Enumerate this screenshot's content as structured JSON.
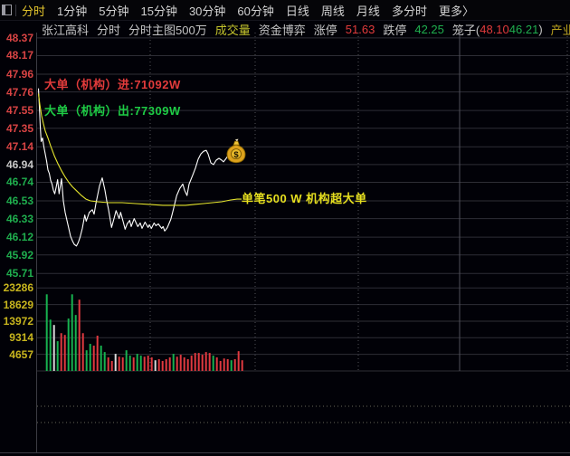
{
  "toolbar": {
    "items": [
      {
        "label": "分时",
        "active": true
      },
      {
        "label": "1分钟",
        "active": false
      },
      {
        "label": "5分钟",
        "active": false
      },
      {
        "label": "15分钟",
        "active": false
      },
      {
        "label": "30分钟",
        "active": false
      },
      {
        "label": "60分钟",
        "active": false
      },
      {
        "label": "日线",
        "active": false
      },
      {
        "label": "周线",
        "active": false
      },
      {
        "label": "月线",
        "active": false
      },
      {
        "label": "多分时",
        "active": false
      },
      {
        "label": "更多〉",
        "active": false
      }
    ]
  },
  "info_bar": {
    "stock_name": "张江高科",
    "view_label": "分时",
    "main_chart_label": "分时主图500万",
    "volume_label": "成交量",
    "fund_label": "资金博弈",
    "limit_up_label": "涨停",
    "limit_up_value": "51.63",
    "limit_down_label": "跌停",
    "limit_down_value": "42.25",
    "cage_label": "笼子(",
    "cage_high": "48.10",
    "cage_low": "46.21",
    "cage_close": ")",
    "sector": "产业地产"
  },
  "overlays": {
    "big_buy": "大单（机构）进:71092W",
    "big_sell": "大单（机构）出:77309W",
    "note": "单笔500 W 机构超大单"
  },
  "chart_data": {
    "type": "line",
    "title": "张江高科 分时",
    "prev_close": 46.94,
    "price_axis": {
      "ylim": [
        45.71,
        48.43
      ],
      "labels": [
        {
          "text": "48.37",
          "tone": "up"
        },
        {
          "text": "48.17",
          "tone": "up"
        },
        {
          "text": "47.96",
          "tone": "up"
        },
        {
          "text": "47.76",
          "tone": "up"
        },
        {
          "text": "47.55",
          "tone": "up"
        },
        {
          "text": "47.35",
          "tone": "up"
        },
        {
          "text": "47.14",
          "tone": "up"
        },
        {
          "text": "46.94",
          "tone": "flat"
        },
        {
          "text": "46.74",
          "tone": "down"
        },
        {
          "text": "46.53",
          "tone": "down"
        },
        {
          "text": "46.33",
          "tone": "down"
        },
        {
          "text": "46.12",
          "tone": "down"
        },
        {
          "text": "45.92",
          "tone": "down"
        },
        {
          "text": "45.71",
          "tone": "down"
        }
      ]
    },
    "volume_axis": {
      "vlim": [
        0,
        27335
      ],
      "labels": [
        "23286",
        "18629",
        "13972",
        "9314",
        "4657"
      ]
    },
    "colors": {
      "price_line": "#ffffff",
      "avg_line": "#e6e62e",
      "bar_up": "#e0393f",
      "bar_down": "#17b24f",
      "bar_flat": "#d9d9d9"
    },
    "series": [
      {
        "name": "price",
        "points": [
          [
            42.5,
            47.8
          ],
          [
            43.5,
            47.6
          ],
          [
            44.5,
            47.37
          ],
          [
            45.5,
            47.2
          ],
          [
            47,
            47.24
          ],
          [
            48.5,
            47.14
          ],
          [
            50,
            47.06
          ],
          [
            51.5,
            46.98
          ],
          [
            53,
            46.88
          ],
          [
            54.5,
            46.84
          ],
          [
            56,
            46.76
          ],
          [
            57.5,
            46.72
          ],
          [
            59,
            46.65
          ],
          [
            60.5,
            46.61
          ],
          [
            62,
            46.68
          ],
          [
            63.7,
            46.77
          ],
          [
            65.3,
            46.61
          ],
          [
            68,
            46.78
          ],
          [
            70,
            46.53
          ],
          [
            72,
            46.4
          ],
          [
            74,
            46.31
          ],
          [
            76,
            46.22
          ],
          [
            78,
            46.13
          ],
          [
            80,
            46.08
          ],
          [
            82,
            46.04
          ],
          [
            84.5,
            46.02
          ],
          [
            86.5,
            46.06
          ],
          [
            88.5,
            46.12
          ],
          [
            91,
            46.22
          ],
          [
            93.7,
            46.37
          ],
          [
            95.3,
            46.3
          ],
          [
            98.7,
            46.4
          ],
          [
            102,
            46.43
          ],
          [
            104,
            46.38
          ],
          [
            106,
            46.5
          ],
          [
            108,
            46.6
          ],
          [
            110,
            46.7
          ],
          [
            113,
            46.79
          ],
          [
            116,
            46.65
          ],
          [
            118,
            46.53
          ],
          [
            120,
            46.43
          ],
          [
            123.3,
            46.23
          ],
          [
            126,
            46.33
          ],
          [
            128.3,
            46.42
          ],
          [
            131.7,
            46.33
          ],
          [
            133.3,
            46.4
          ],
          [
            136,
            46.3
          ],
          [
            138.3,
            46.21
          ],
          [
            140.5,
            46.27
          ],
          [
            143.3,
            46.31
          ],
          [
            145,
            46.24
          ],
          [
            148.3,
            46.33
          ],
          [
            152.3,
            46.24
          ],
          [
            155,
            46.28
          ],
          [
            157,
            46.22
          ],
          [
            160.3,
            46.29
          ],
          [
            163.7,
            46.23
          ],
          [
            165,
            46.26
          ],
          [
            167.3,
            46.22
          ],
          [
            170.3,
            46.28
          ],
          [
            172.3,
            46.25
          ],
          [
            175,
            46.27
          ],
          [
            178.7,
            46.22
          ],
          [
            180.3,
            46.24
          ],
          [
            182,
            46.19
          ],
          [
            183.7,
            46.21
          ],
          [
            185,
            46.23
          ],
          [
            188.7,
            46.32
          ],
          [
            190.3,
            46.38
          ],
          [
            192,
            46.45
          ],
          [
            195.3,
            46.59
          ],
          [
            198.7,
            46.67
          ],
          [
            202,
            46.72
          ],
          [
            204,
            46.65
          ],
          [
            206.7,
            46.59
          ],
          [
            209,
            46.72
          ],
          [
            211,
            46.77
          ],
          [
            213,
            46.82
          ],
          [
            216,
            46.9
          ],
          [
            219,
            47.0
          ],
          [
            222,
            47.06
          ],
          [
            225,
            47.09
          ],
          [
            228,
            47.1
          ],
          [
            230,
            47.06
          ],
          [
            233,
            46.96
          ],
          [
            236,
            46.94
          ],
          [
            239,
            46.99
          ],
          [
            242,
            47.01
          ],
          [
            245,
            46.99
          ],
          [
            247,
            46.97
          ],
          [
            250,
            47.01
          ],
          [
            252,
            47.04
          ],
          [
            255,
            47.02
          ],
          [
            258,
            47.0
          ],
          [
            261,
            47.01
          ],
          [
            263,
            47.04
          ],
          [
            265,
            47.09
          ],
          [
            267,
            47.14
          ]
        ]
      },
      {
        "name": "avg_price",
        "points": [
          [
            42.5,
            47.74
          ],
          [
            44,
            47.62
          ],
          [
            46,
            47.49
          ],
          [
            48,
            47.4
          ],
          [
            50,
            47.32
          ],
          [
            53,
            47.24
          ],
          [
            56,
            47.15
          ],
          [
            60,
            47.04
          ],
          [
            64,
            46.95
          ],
          [
            68,
            46.87
          ],
          [
            72,
            46.8
          ],
          [
            76,
            46.74
          ],
          [
            80,
            46.69
          ],
          [
            85,
            46.64
          ],
          [
            90,
            46.59
          ],
          [
            95,
            46.55
          ],
          [
            100,
            46.53
          ],
          [
            108,
            46.52
          ],
          [
            120,
            46.51
          ],
          [
            135,
            46.51
          ],
          [
            150,
            46.5
          ],
          [
            165,
            46.49
          ],
          [
            180,
            46.48
          ],
          [
            192,
            46.48
          ],
          [
            205,
            46.48
          ],
          [
            215,
            46.49
          ],
          [
            225,
            46.5
          ],
          [
            235,
            46.51
          ],
          [
            245,
            46.52
          ],
          [
            255,
            46.54
          ],
          [
            262,
            46.55
          ],
          [
            267,
            46.55
          ]
        ]
      }
    ],
    "volume_bars": {
      "x_start": 51.7,
      "x_step": 4,
      "bars": [
        [
          21500,
          "g"
        ],
        [
          14400,
          "g"
        ],
        [
          12900,
          "w"
        ],
        [
          8350,
          "g"
        ],
        [
          10600,
          "r"
        ],
        [
          10100,
          "r"
        ],
        [
          14700,
          "g"
        ],
        [
          21500,
          "g"
        ],
        [
          15700,
          "g"
        ],
        [
          20000,
          "r"
        ],
        [
          10600,
          "r"
        ],
        [
          5800,
          "g"
        ],
        [
          7600,
          "g"
        ],
        [
          7100,
          "r"
        ],
        [
          9900,
          "r"
        ],
        [
          7100,
          "g"
        ],
        [
          5300,
          "g"
        ],
        [
          3800,
          "r"
        ],
        [
          2800,
          "r"
        ],
        [
          4800,
          "w"
        ],
        [
          4000,
          "r"
        ],
        [
          3800,
          "r"
        ],
        [
          5800,
          "g"
        ],
        [
          4300,
          "g"
        ],
        [
          3800,
          "r"
        ],
        [
          4800,
          "g"
        ],
        [
          4300,
          "g"
        ],
        [
          4000,
          "r"
        ],
        [
          4300,
          "r"
        ],
        [
          3800,
          "r"
        ],
        [
          3000,
          "w"
        ],
        [
          3300,
          "r"
        ],
        [
          2800,
          "r"
        ],
        [
          3300,
          "r"
        ],
        [
          3800,
          "r"
        ],
        [
          4800,
          "g"
        ],
        [
          4000,
          "r"
        ],
        [
          4550,
          "r"
        ],
        [
          3800,
          "r"
        ],
        [
          3300,
          "r"
        ],
        [
          4300,
          "r"
        ],
        [
          5050,
          "r"
        ],
        [
          5050,
          "r"
        ],
        [
          4550,
          "r"
        ],
        [
          5300,
          "r"
        ],
        [
          5050,
          "r"
        ],
        [
          4300,
          "g"
        ],
        [
          3800,
          "r"
        ],
        [
          2800,
          "r"
        ],
        [
          3500,
          "r"
        ],
        [
          3300,
          "r"
        ],
        [
          3000,
          "g"
        ],
        [
          3300,
          "r"
        ],
        [
          5550,
          "r"
        ],
        [
          3000,
          "r"
        ]
      ]
    },
    "money_bag_marker": {
      "x": 261,
      "price": 47.07
    },
    "grid": {
      "v_lines_dotted": [
        166,
        282,
        396,
        627
      ],
      "v_lines_solid": [
        508
      ]
    }
  }
}
